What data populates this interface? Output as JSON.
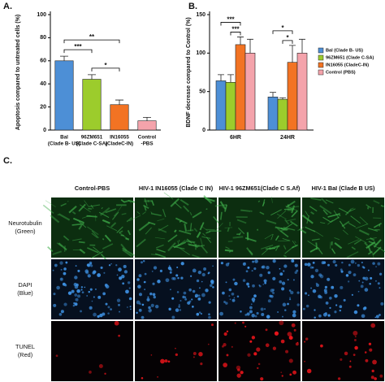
{
  "chart_data": [
    {
      "type": "bar",
      "panel_label": "A.",
      "ylabel": "Apoptosis compared to untreated cells (%)",
      "categories": [
        [
          "Bal",
          "(Clade B- US)"
        ],
        [
          "96ZM651",
          "(Clade C-SA)"
        ],
        [
          "IN16055",
          "(CladeC-IN)"
        ],
        [
          "Control",
          "-PBS"
        ]
      ],
      "values": [
        60,
        44,
        22,
        8
      ],
      "errors": [
        4,
        4,
        4,
        3
      ],
      "colors": [
        "#4d8fd6",
        "#9ccc2c",
        "#f27323",
        "#f4a3ab"
      ],
      "ylim": [
        0,
        100
      ],
      "yticks": [
        0,
        20,
        40,
        60,
        80,
        100
      ],
      "annotations": [
        {
          "label": "***",
          "between": [
            0,
            1
          ]
        },
        {
          "label": "**",
          "between": [
            0,
            2
          ]
        },
        {
          "label": "*",
          "between": [
            1,
            2
          ]
        }
      ]
    },
    {
      "type": "grouped_bar",
      "panel_label": "B.",
      "ylabel": "BDNF decrease compared to Control (%)",
      "categories": [
        "6HR",
        "24HR"
      ],
      "series": [
        {
          "name": "Bal (Clade B- US)",
          "color": "#4d8fd6",
          "values": [
            64,
            43
          ],
          "errors": [
            8,
            6
          ]
        },
        {
          "name": "96ZM651 (Clade C-SA)",
          "color": "#9ccc2c",
          "values": [
            62,
            40
          ],
          "errors": [
            10,
            2
          ]
        },
        {
          "name": "IN16055 (CladeC-IN)",
          "color": "#f27323",
          "values": [
            111,
            88
          ],
          "errors": [
            10,
            22
          ]
        },
        {
          "name": "Control (PBS)",
          "color": "#f4a3ab",
          "values": [
            100,
            100
          ],
          "errors": [
            18,
            18
          ]
        }
      ],
      "ylim": [
        0,
        150
      ],
      "yticks": [
        0,
        50,
        100,
        150
      ],
      "annotations": [
        {
          "category": 0,
          "label": "***",
          "between": [
            0,
            2
          ]
        },
        {
          "category": 0,
          "label": "***",
          "between": [
            1,
            2
          ]
        },
        {
          "category": 1,
          "label": "*",
          "between": [
            0,
            2
          ]
        },
        {
          "category": 1,
          "label": "*",
          "between": [
            1,
            2
          ]
        }
      ]
    }
  ],
  "image_grid": {
    "panel_label": "C.",
    "columns": [
      "Control-PBS",
      "HIV-1 IN16055 (Clade C IN)",
      "HIV-1 96ZM651(Clade C S.Af)",
      "HIV-1 BaI (Clade B US)"
    ],
    "rows": [
      [
        "Neurotubulin",
        "(Green)"
      ],
      [
        "DAPI",
        "(Blue)"
      ],
      [
        "TUNEL",
        "(Red)"
      ]
    ]
  }
}
